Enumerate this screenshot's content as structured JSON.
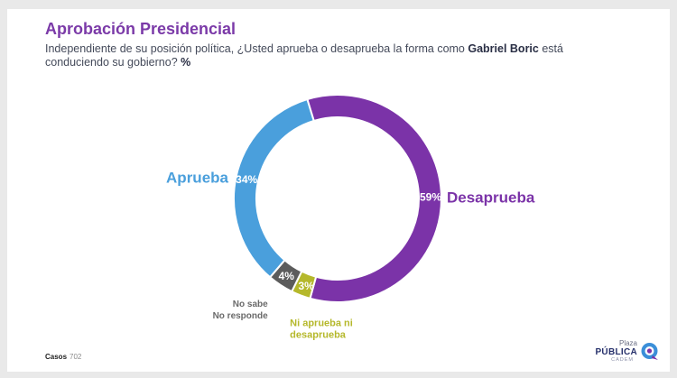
{
  "header": {
    "title": "Aprobación Presidencial",
    "subtitle_pre": "Independiente de su posición política, ¿Usted aprueba o desaprueba la forma como ",
    "subtitle_name": "Gabriel Boric",
    "subtitle_post": " está conduciendo su gobierno? ",
    "subtitle_unit": "%"
  },
  "chart_data": {
    "type": "pie",
    "variant": "donut",
    "slices": [
      {
        "label": "Desaprueba",
        "value": 59,
        "value_label": "59%",
        "color": "#7b33a8"
      },
      {
        "label": "Ni aprueba ni desaprueba",
        "label_lines": [
          "Ni aprueba ni",
          "desaprueba"
        ],
        "value": 3,
        "value_label": "3%",
        "color": "#b5b82b"
      },
      {
        "label": "No sabe No responde",
        "label_lines": [
          "No sabe",
          "No responde"
        ],
        "value": 4,
        "value_label": "4%",
        "color": "#5c5c5c"
      },
      {
        "label": "Aprueba",
        "value": 34,
        "value_label": "34%",
        "color": "#4a9fdc"
      }
    ]
  },
  "footer": {
    "label": "Casos",
    "n": "702"
  },
  "logo": {
    "line1": "Plaza",
    "line2": "PÚBLICA",
    "line3": "CADEM",
    "icon": "chat-bubble-icon"
  }
}
